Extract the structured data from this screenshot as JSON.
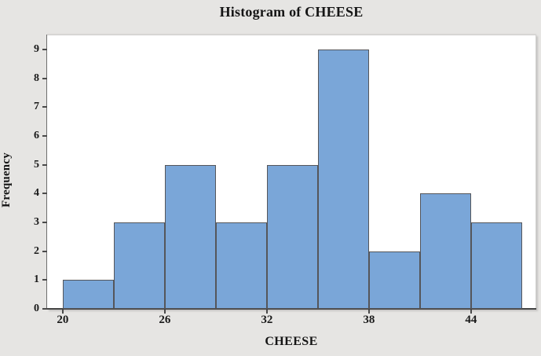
{
  "title": "Histogram of CHEESE",
  "chart_data": {
    "type": "bar",
    "subtype": "histogram",
    "title": "Histogram of CHEESE",
    "xlabel": "CHEESE",
    "ylabel": "Frequency",
    "bin_edges": [
      20,
      23,
      26,
      29,
      32,
      35,
      38,
      41,
      44,
      47
    ],
    "frequencies": [
      1,
      3,
      5,
      3,
      5,
      9,
      2,
      4,
      3
    ],
    "x_ticks": [
      20,
      26,
      32,
      38,
      44
    ],
    "y_ticks": [
      0,
      1,
      2,
      3,
      4,
      5,
      6,
      7,
      8,
      9
    ],
    "xlim": [
      19.08,
      47.79
    ],
    "ylim": [
      0,
      9.52
    ],
    "grid": "off",
    "legend": "none",
    "colors": {
      "bar_fill": "#7aa6d8",
      "bar_border": "#55565a",
      "plot_background": "#ffffff",
      "canvas_background": "#e6e5e3",
      "axis_line": "#454545",
      "text": "#151515"
    }
  }
}
